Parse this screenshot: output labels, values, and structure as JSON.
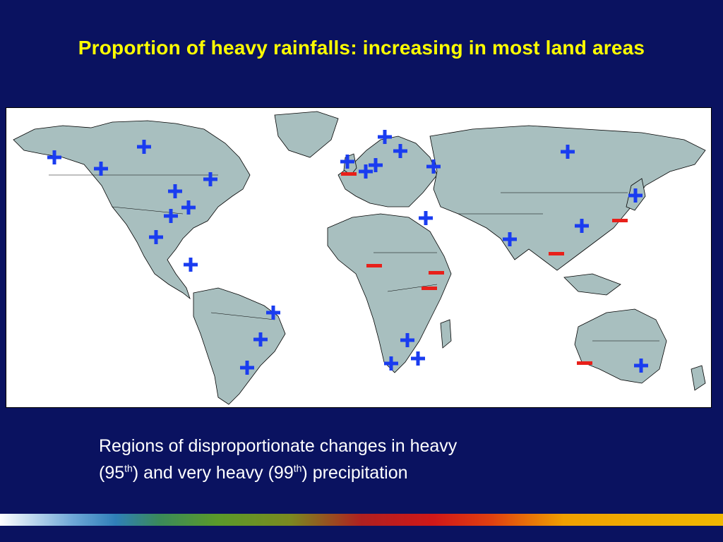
{
  "title": "Proportion of heavy rainfalls: increasing in most land areas",
  "caption": {
    "line1": "Regions of disproportionate changes in heavy",
    "line2_a": "(95",
    "line2_sup1": "th",
    "line2_b": ") and very heavy (99",
    "line2_sup2": "th",
    "line2_c": ") precipitation"
  },
  "legend_symbols": {
    "plus": "+",
    "minus": "−"
  },
  "colors": {
    "background": "#0a1260",
    "title": "#ffff00",
    "land": "#a8bfbf",
    "plus": "#1a3cf0",
    "minus": "#e8201a"
  }
}
